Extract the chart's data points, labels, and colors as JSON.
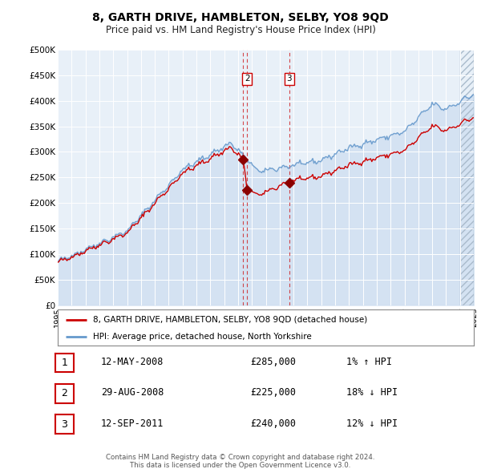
{
  "title": "8, GARTH DRIVE, HAMBLETON, SELBY, YO8 9QD",
  "subtitle": "Price paid vs. HM Land Registry's House Price Index (HPI)",
  "bg_color": "#ffffff",
  "plot_bg_color": "#ddeeff",
  "grid_color": "#ffffff",
  "hpi_color": "#6699cc",
  "hpi_fill_color": "#ddeeff",
  "price_color": "#cc0000",
  "ylim": [
    0,
    500000
  ],
  "yticks": [
    0,
    50000,
    100000,
    150000,
    200000,
    250000,
    300000,
    350000,
    400000,
    450000,
    500000
  ],
  "ytick_labels": [
    "£0",
    "£50K",
    "£100K",
    "£150K",
    "£200K",
    "£250K",
    "£300K",
    "£350K",
    "£400K",
    "£450K",
    "£500K"
  ],
  "xlim_start": 1995,
  "xlim_end": 2025,
  "transactions": [
    {
      "num": 1,
      "date": "12-MAY-2008",
      "price": 285000,
      "hpi_rel": "1% ↑ HPI",
      "x_year": 2008.37
    },
    {
      "num": 2,
      "date": "29-AUG-2008",
      "price": 225000,
      "hpi_rel": "18% ↓ HPI",
      "x_year": 2008.66
    },
    {
      "num": 3,
      "date": "12-SEP-2011",
      "price": 240000,
      "hpi_rel": "12% ↓ HPI",
      "x_year": 2011.7
    }
  ],
  "legend_property_label": "8, GARTH DRIVE, HAMBLETON, SELBY, YO8 9QD (detached house)",
  "legend_hpi_label": "HPI: Average price, detached house, North Yorkshire",
  "footer_line1": "Contains HM Land Registry data © Crown copyright and database right 2024.",
  "footer_line2": "This data is licensed under the Open Government Licence v3.0."
}
